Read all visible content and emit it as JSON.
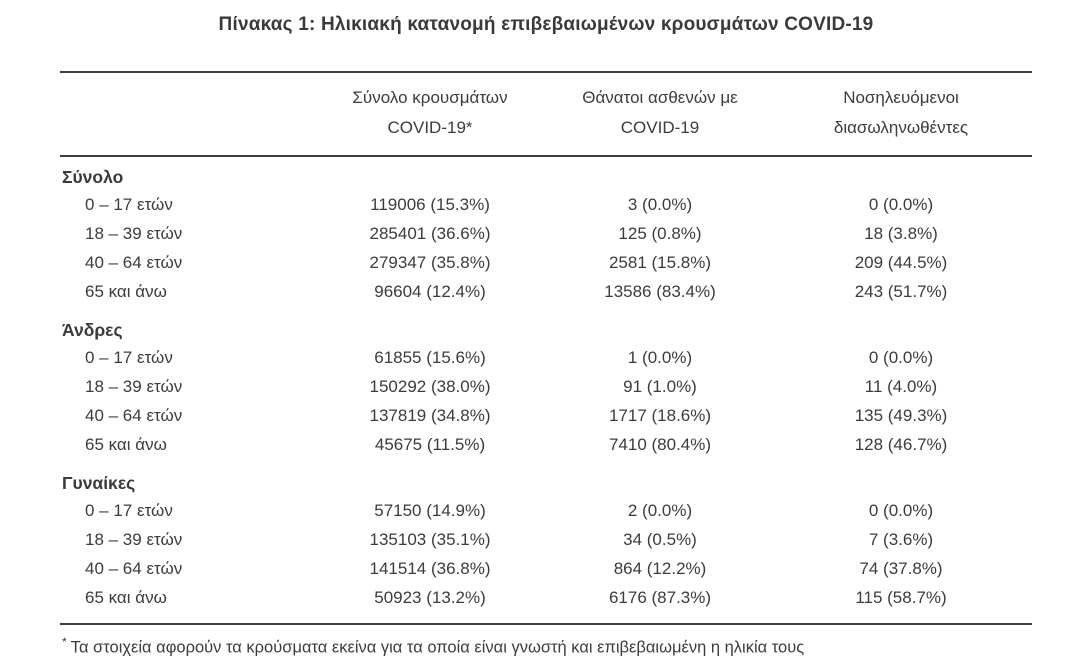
{
  "title": "Πίνακας 1: Ηλικιακή κατανομή επιβεβαιωμένων κρουσμάτων COVID-19",
  "table": {
    "columns": {
      "row_label": "",
      "cases": "Σύνολο κρουσμάτων\nCOVID-19*",
      "deaths": "Θάνατοι ασθενών με\nCOVID-19",
      "intubated": "Νοσηλευόμενοι\nδιασωληνωθέντες"
    },
    "sections": [
      {
        "label": "Σύνολο",
        "rows": [
          {
            "label": "0 – 17 ετών",
            "cases": "119006 (15.3%)",
            "deaths": "3 (0.0%)",
            "intubated": "0 (0.0%)"
          },
          {
            "label": "18 – 39 ετών",
            "cases": "285401 (36.6%)",
            "deaths": "125 (0.8%)",
            "intubated": "18 (3.8%)"
          },
          {
            "label": "40 – 64 ετών",
            "cases": "279347 (35.8%)",
            "deaths": "2581 (15.8%)",
            "intubated": "209 (44.5%)"
          },
          {
            "label": "65 και άνω",
            "cases": "96604 (12.4%)",
            "deaths": "13586 (83.4%)",
            "intubated": "243 (51.7%)"
          }
        ]
      },
      {
        "label": "Άνδρες",
        "rows": [
          {
            "label": "0 – 17 ετών",
            "cases": "61855 (15.6%)",
            "deaths": "1 (0.0%)",
            "intubated": "0 (0.0%)"
          },
          {
            "label": "18 – 39 ετών",
            "cases": "150292 (38.0%)",
            "deaths": "91 (1.0%)",
            "intubated": "11 (4.0%)"
          },
          {
            "label": "40 – 64 ετών",
            "cases": "137819 (34.8%)",
            "deaths": "1717 (18.6%)",
            "intubated": "135 (49.3%)"
          },
          {
            "label": "65 και άνω",
            "cases": "45675 (11.5%)",
            "deaths": "7410 (80.4%)",
            "intubated": "128 (46.7%)"
          }
        ]
      },
      {
        "label": "Γυναίκες",
        "rows": [
          {
            "label": "0 – 17 ετών",
            "cases": "57150 (14.9%)",
            "deaths": "2 (0.0%)",
            "intubated": "0 (0.0%)"
          },
          {
            "label": "18 – 39 ετών",
            "cases": "135103 (35.1%)",
            "deaths": "34 (0.5%)",
            "intubated": "7 (3.6%)"
          },
          {
            "label": "40 – 64 ετών",
            "cases": "141514 (36.8%)",
            "deaths": "864 (12.2%)",
            "intubated": "74 (37.8%)"
          },
          {
            "label": "65 και άνω",
            "cases": "50923 (13.2%)",
            "deaths": "6176 (87.3%)",
            "intubated": "115 (58.7%)"
          }
        ]
      }
    ],
    "footnote_marker": "*",
    "footnote": "Τα στοιχεία αφορούν τα κρούσματα εκείνα για τα οποία είναι γνωστή και επιβεβαιωμένη η ηλικία τους"
  },
  "colors": {
    "text": "#3c3c3c",
    "rule": "#3e3e3e",
    "background": "#ffffff"
  }
}
